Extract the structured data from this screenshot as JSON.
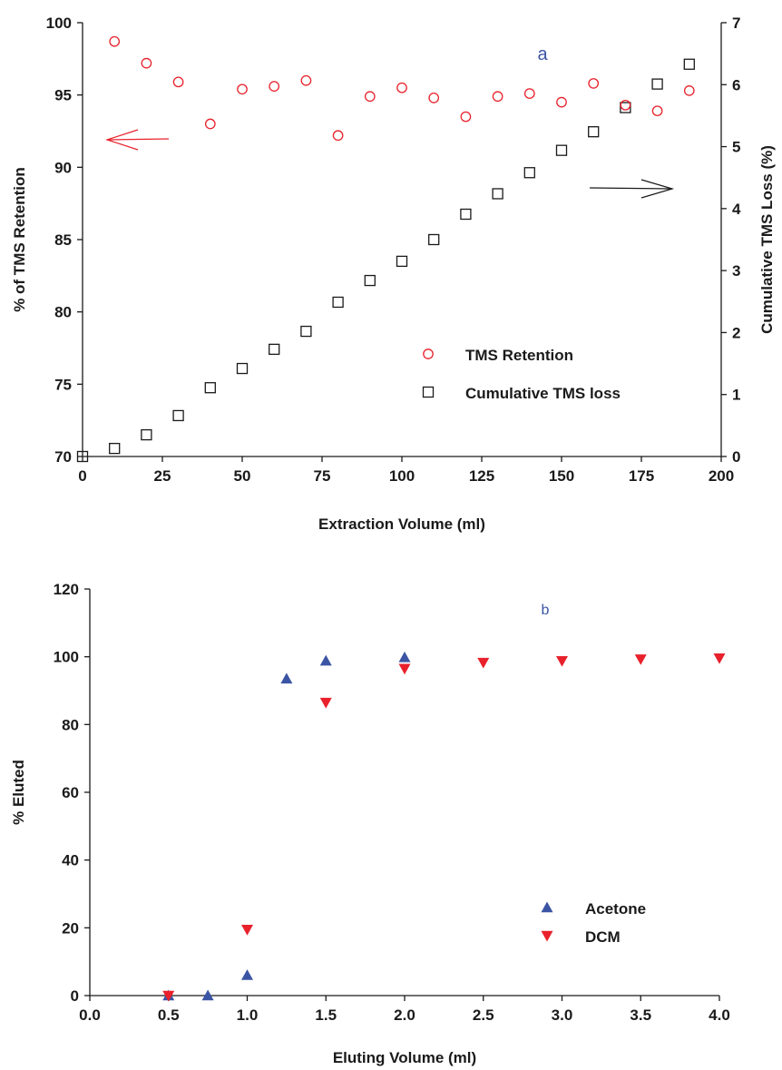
{
  "chart_data": [
    {
      "type": "scatter",
      "panel_label": "a",
      "xlabel": "Extraction Volume (ml)",
      "ylabel": "% of TMS Retention",
      "y2label": "Cumulative TMS Loss (%)",
      "xlim": [
        0,
        200
      ],
      "ylim": [
        70,
        100
      ],
      "y2lim": [
        0,
        7
      ],
      "xticks": [
        "0",
        "25",
        "50",
        "75",
        "100",
        "125",
        "150",
        "175",
        "200"
      ],
      "yticks": [
        "70",
        "75",
        "80",
        "85",
        "90",
        "95",
        "100"
      ],
      "y2ticks": [
        "0",
        "1",
        "2",
        "3",
        "4",
        "5",
        "6",
        "7"
      ],
      "grid": false,
      "legend_position": "bottom-right",
      "series": [
        {
          "name": "TMS Retention",
          "axis": "left",
          "marker": "circle",
          "color": "#e8212b",
          "x": [
            10,
            20,
            30,
            40,
            50,
            60,
            70,
            80,
            90,
            100,
            110,
            120,
            130,
            140,
            150,
            160,
            170,
            180,
            190
          ],
          "y": [
            98.7,
            97.2,
            95.9,
            93.0,
            95.4,
            95.6,
            96.0,
            92.2,
            94.9,
            95.5,
            94.8,
            93.5,
            94.9,
            95.1,
            94.5,
            95.8,
            94.3,
            93.9,
            95.3
          ]
        },
        {
          "name": "Cumulative TMS loss",
          "axis": "right",
          "marker": "square",
          "color": "#1a1a1a",
          "x": [
            0,
            10,
            20,
            30,
            40,
            50,
            60,
            70,
            80,
            90,
            100,
            110,
            120,
            130,
            140,
            150,
            160,
            170,
            180,
            190
          ],
          "y": [
            0.0,
            0.13,
            0.35,
            0.66,
            1.11,
            1.42,
            1.73,
            2.02,
            2.49,
            2.84,
            3.15,
            3.5,
            3.91,
            4.24,
            4.58,
            4.94,
            5.24,
            5.63,
            6.01,
            6.33
          ]
        }
      ]
    },
    {
      "type": "scatter",
      "panel_label": "b",
      "xlabel": "Eluting Volume (ml)",
      "ylabel": "% Eluted",
      "xlim": [
        0,
        4
      ],
      "ylim": [
        0,
        120
      ],
      "xticks": [
        "0.0",
        "0.5",
        "1.0",
        "1.5",
        "2.0",
        "2.5",
        "3.0",
        "3.5",
        "4.0"
      ],
      "yticks": [
        "0",
        "20",
        "40",
        "60",
        "80",
        "100",
        "120"
      ],
      "grid": false,
      "legend_position": "bottom-right",
      "series": [
        {
          "name": "Acetone",
          "marker": "triangle-up",
          "color": "#3b55a4",
          "x": [
            0.5,
            0.75,
            1.0,
            1.25,
            1.5,
            2.0
          ],
          "y": [
            0,
            0,
            6,
            93.5,
            98.8,
            99.8
          ]
        },
        {
          "name": "DCM",
          "marker": "triangle-down",
          "color": "#e8212b",
          "x": [
            0.5,
            1.0,
            1.5,
            2.0,
            2.5,
            3.0,
            3.5,
            4.0
          ],
          "y": [
            0,
            19.5,
            86.5,
            96.5,
            98.3,
            98.8,
            99.3,
            99.6
          ]
        }
      ]
    }
  ]
}
